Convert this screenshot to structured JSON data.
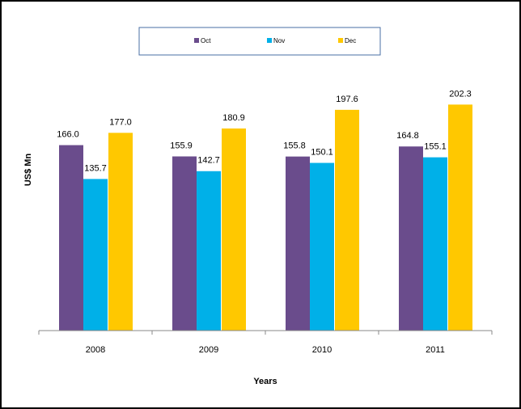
{
  "chart_data": {
    "type": "bar",
    "x_label": "Years",
    "y_label": "US$ Mn",
    "categories": [
      "2008",
      "2009",
      "2010",
      "2011"
    ],
    "series": [
      {
        "name": "Oct",
        "color": "#6a4c8c",
        "values": [
          166.0,
          155.9,
          155.8,
          164.8
        ],
        "value_labels": [
          "166.0",
          "155.9",
          "155.8",
          "164.8"
        ]
      },
      {
        "name": "Nov",
        "color": "#00b0e8",
        "values": [
          135.7,
          142.7,
          150.1,
          155.1
        ],
        "value_labels": [
          "135.7",
          "142.7",
          "150.1",
          "155.1"
        ]
      },
      {
        "name": "Dec",
        "color": "#ffc800",
        "values": [
          177.0,
          180.9,
          197.6,
          202.3
        ],
        "value_labels": [
          "177.0",
          "180.9",
          "197.6",
          "202.3"
        ]
      }
    ],
    "ylim": [
      0,
      225
    ],
    "legend": "top"
  }
}
